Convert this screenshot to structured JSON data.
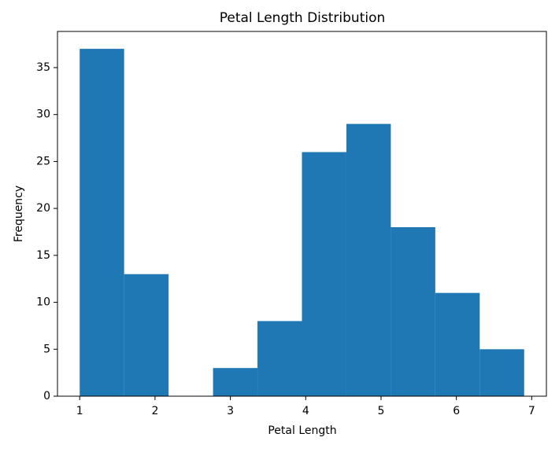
{
  "chart_data": {
    "type": "histogram",
    "title": "Petal Length Distribution",
    "x_label": "Petal Length",
    "y_label": "Frequency",
    "bins": [
      1.0,
      1.59,
      2.18,
      2.77,
      3.36,
      3.95,
      4.54,
      5.13,
      5.72,
      6.31,
      6.9
    ],
    "values": [
      37,
      13,
      0,
      3,
      8,
      26,
      29,
      18,
      11,
      5
    ],
    "color": "#1f77b4",
    "xlim": [
      0.705,
      7.195
    ],
    "xticks": [
      1,
      2,
      3,
      4,
      5,
      6,
      7
    ],
    "ylim": [
      0,
      38.85
    ],
    "yticks": [
      0,
      5,
      10,
      15,
      20,
      25,
      30,
      35
    ]
  }
}
